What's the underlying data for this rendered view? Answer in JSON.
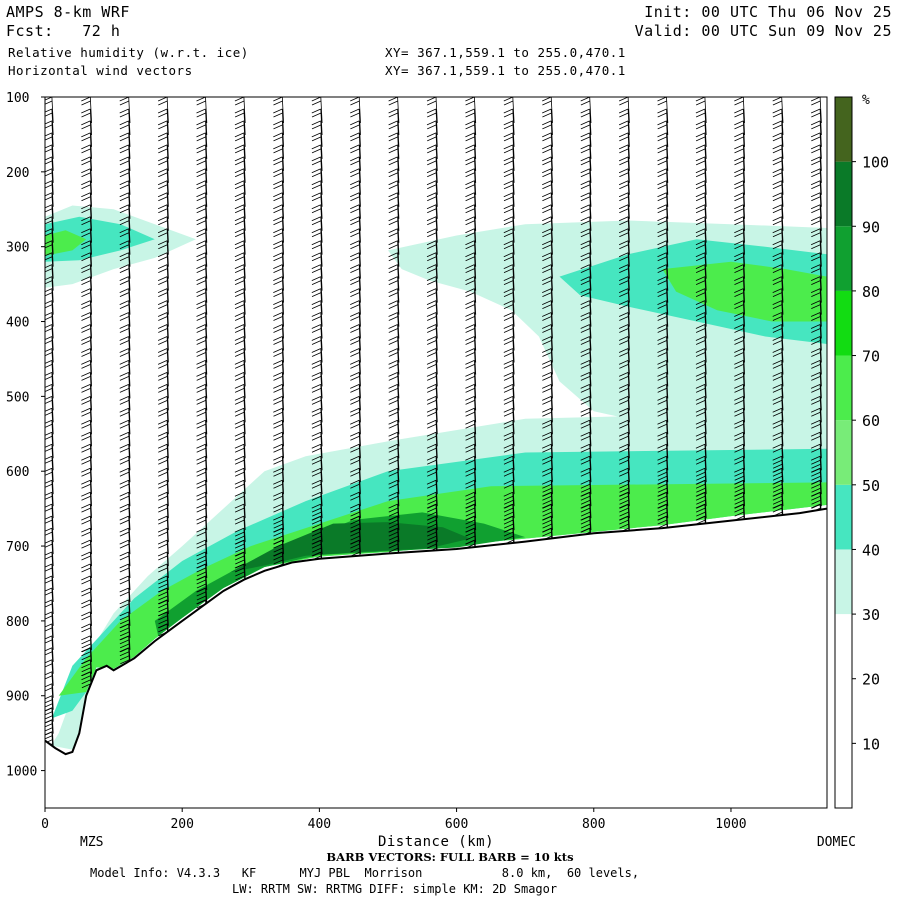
{
  "header": {
    "model": "AMPS 8-km WRF",
    "fcst": "Fcst:   72 h",
    "field1": "Relative humidity (w.r.t. ice)",
    "field2": "Horizontal wind vectors",
    "init": "Init: 00 UTC Thu 06 Nov 25",
    "valid": "Valid: 00 UTC Sun 09 Nov 25",
    "xy1": "XY= 367.1,559.1 to 255.0,470.1",
    "xy2": "XY= 367.1,559.1 to 255.0,470.1"
  },
  "footer": {
    "start_label": "MZS",
    "end_label": "DOMEC",
    "barb_note": "BARB VECTORS:  FULL BARB = 10 kts",
    "model_info": "Model Info: V4.3.3   KF      MYJ PBL  Morrison           8.0 km,  60 levels,",
    "model_info2": "LW: RRTM SW: RRTMG   DIFF: simple KM: 2D Smagor"
  },
  "colorbar": {
    "unit": "%",
    "levels": [
      10,
      20,
      30,
      40,
      50,
      60,
      70,
      80,
      90,
      100
    ],
    "colors": [
      "#ffffff",
      "#ffffff",
      "#ffffff",
      "#c8f5e6",
      "#46e6c0",
      "#78ec78",
      "#4cec4c",
      "#12dc12",
      "#10a030",
      "#0a7a28",
      "#44641e"
    ]
  },
  "chart_data": {
    "type": "heatmap",
    "title": "Relative humidity (w.r.t. ice)",
    "xlabel": "Distance (km)",
    "ylabel": "",
    "xlim": [
      0,
      1140
    ],
    "ylim": [
      1050,
      100
    ],
    "x_ticks": [
      0,
      200,
      400,
      600,
      800,
      1000
    ],
    "y_ticks": [
      100,
      200,
      300,
      400,
      500,
      600,
      700,
      800,
      900,
      1000
    ],
    "terrain": [
      [
        0,
        960
      ],
      [
        15,
        970
      ],
      [
        30,
        978
      ],
      [
        40,
        975
      ],
      [
        50,
        950
      ],
      [
        60,
        900
      ],
      [
        75,
        866
      ],
      [
        90,
        860
      ],
      [
        100,
        866
      ],
      [
        130,
        850
      ],
      [
        160,
        827
      ],
      [
        200,
        800
      ],
      [
        230,
        780
      ],
      [
        260,
        760
      ],
      [
        290,
        745
      ],
      [
        320,
        733
      ],
      [
        360,
        722
      ],
      [
        400,
        717
      ],
      [
        500,
        710
      ],
      [
        600,
        704
      ],
      [
        700,
        694
      ],
      [
        800,
        683
      ],
      [
        900,
        676
      ],
      [
        1000,
        666
      ],
      [
        1100,
        656
      ],
      [
        1140,
        650
      ]
    ],
    "rh_regions": [
      {
        "value": 35,
        "points": [
          [
            0,
            980
          ],
          [
            20,
            950
          ],
          [
            40,
            900
          ],
          [
            60,
            850
          ],
          [
            100,
            790
          ],
          [
            150,
            740
          ],
          [
            200,
            700
          ],
          [
            260,
            650
          ],
          [
            320,
            600
          ],
          [
            380,
            580
          ],
          [
            500,
            560
          ],
          [
            700,
            530
          ],
          [
            1140,
            520
          ],
          [
            1140,
            645
          ],
          [
            1000,
            660
          ],
          [
            900,
            672
          ],
          [
            700,
            690
          ],
          [
            500,
            708
          ],
          [
            400,
            714
          ],
          [
            320,
            728
          ],
          [
            260,
            756
          ],
          [
            200,
            796
          ],
          [
            160,
            824
          ],
          [
            130,
            848
          ],
          [
            100,
            864
          ],
          [
            75,
            864
          ],
          [
            60,
            898
          ],
          [
            50,
            948
          ],
          [
            40,
            972
          ],
          [
            0,
            965
          ]
        ]
      },
      {
        "value": 45,
        "points": [
          [
            10,
            930
          ],
          [
            40,
            860
          ],
          [
            80,
            820
          ],
          [
            130,
            770
          ],
          [
            200,
            720
          ],
          [
            280,
            680
          ],
          [
            380,
            640
          ],
          [
            500,
            600
          ],
          [
            700,
            575
          ],
          [
            1140,
            570
          ],
          [
            1140,
            645
          ],
          [
            1000,
            660
          ],
          [
            900,
            672
          ],
          [
            700,
            690
          ],
          [
            500,
            708
          ],
          [
            400,
            714
          ],
          [
            320,
            728
          ],
          [
            260,
            756
          ],
          [
            200,
            796
          ],
          [
            160,
            824
          ],
          [
            130,
            848
          ],
          [
            100,
            864
          ],
          [
            75,
            862
          ],
          [
            60,
            895
          ],
          [
            40,
            920
          ]
        ]
      },
      {
        "value": 65,
        "points": [
          [
            20,
            900
          ],
          [
            60,
            850
          ],
          [
            110,
            800
          ],
          [
            170,
            760
          ],
          [
            230,
            730
          ],
          [
            300,
            700
          ],
          [
            400,
            670
          ],
          [
            500,
            640
          ],
          [
            650,
            620
          ],
          [
            1140,
            615
          ],
          [
            1140,
            645
          ],
          [
            1000,
            660
          ],
          [
            900,
            672
          ],
          [
            700,
            690
          ],
          [
            500,
            708
          ],
          [
            400,
            714
          ],
          [
            320,
            728
          ],
          [
            260,
            756
          ],
          [
            200,
            796
          ],
          [
            160,
            824
          ],
          [
            130,
            848
          ],
          [
            100,
            864
          ],
          [
            75,
            862
          ],
          [
            60,
            895
          ]
        ]
      },
      {
        "value": 85,
        "points": [
          [
            160,
            800
          ],
          [
            220,
            760
          ],
          [
            300,
            720
          ],
          [
            380,
            690
          ],
          [
            450,
            665
          ],
          [
            550,
            655
          ],
          [
            640,
            670
          ],
          [
            700,
            688
          ],
          [
            600,
            702
          ],
          [
            500,
            707
          ],
          [
            400,
            712
          ],
          [
            320,
            728
          ],
          [
            260,
            756
          ],
          [
            200,
            796
          ],
          [
            165,
            820
          ]
        ]
      },
      {
        "value": 95,
        "points": [
          [
            270,
            735
          ],
          [
            340,
            700
          ],
          [
            420,
            670
          ],
          [
            500,
            668
          ],
          [
            580,
            675
          ],
          [
            620,
            690
          ],
          [
            560,
            703
          ],
          [
            460,
            708
          ],
          [
            380,
            713
          ],
          [
            320,
            726
          ]
        ]
      },
      {
        "value": 35,
        "points": [
          [
            0,
            260
          ],
          [
            40,
            245
          ],
          [
            100,
            250
          ],
          [
            160,
            270
          ],
          [
            220,
            290
          ],
          [
            160,
            315
          ],
          [
            100,
            330
          ],
          [
            40,
            350
          ],
          [
            0,
            355
          ]
        ]
      },
      {
        "value": 45,
        "points": [
          [
            0,
            270
          ],
          [
            50,
            260
          ],
          [
            110,
            270
          ],
          [
            160,
            290
          ],
          [
            110,
            305
          ],
          [
            50,
            318
          ],
          [
            0,
            320
          ]
        ]
      },
      {
        "value": 65,
        "points": [
          [
            0,
            285
          ],
          [
            30,
            278
          ],
          [
            60,
            290
          ],
          [
            40,
            305
          ],
          [
            0,
            312
          ]
        ]
      },
      {
        "value": 35,
        "points": [
          [
            500,
            305
          ],
          [
            600,
            285
          ],
          [
            700,
            270
          ],
          [
            850,
            265
          ],
          [
            1000,
            270
          ],
          [
            1140,
            275
          ],
          [
            1140,
            560
          ],
          [
            1000,
            550
          ],
          [
            900,
            540
          ],
          [
            800,
            520
          ],
          [
            750,
            480
          ],
          [
            720,
            420
          ],
          [
            680,
            385
          ],
          [
            620,
            360
          ],
          [
            560,
            345
          ],
          [
            520,
            330
          ]
        ]
      },
      {
        "value": 45,
        "points": [
          [
            750,
            340
          ],
          [
            850,
            310
          ],
          [
            950,
            290
          ],
          [
            1050,
            300
          ],
          [
            1140,
            310
          ],
          [
            1140,
            430
          ],
          [
            1050,
            420
          ],
          [
            950,
            400
          ],
          [
            850,
            380
          ],
          [
            780,
            365
          ]
        ]
      },
      {
        "value": 65,
        "points": [
          [
            900,
            330
          ],
          [
            1000,
            320
          ],
          [
            1080,
            330
          ],
          [
            1140,
            340
          ],
          [
            1140,
            400
          ],
          [
            1060,
            400
          ],
          [
            980,
            385
          ],
          [
            920,
            360
          ]
        ]
      }
    ]
  }
}
